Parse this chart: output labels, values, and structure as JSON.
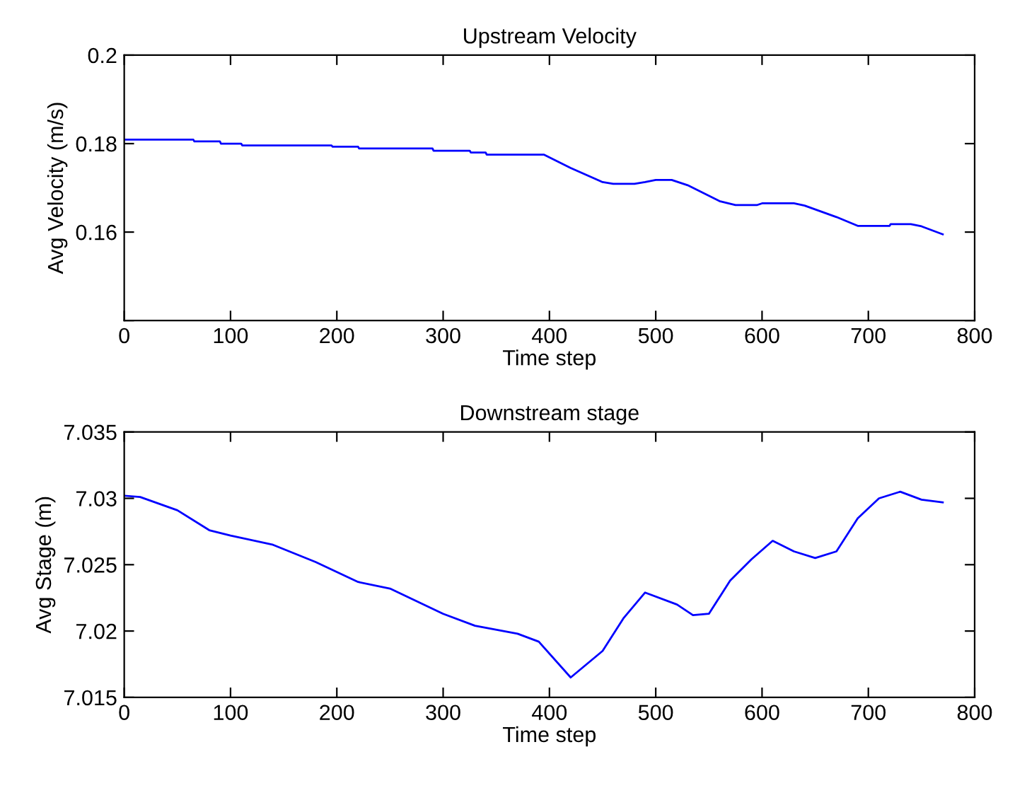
{
  "chart_data": [
    {
      "type": "line",
      "title": "Upstream Velocity",
      "xlabel": "Time step",
      "ylabel": "Avg Velocity (m/s)",
      "xlim": [
        0,
        800
      ],
      "xticks": [
        0,
        100,
        200,
        300,
        400,
        500,
        600,
        700,
        800
      ],
      "ylim": [
        0.14,
        0.2
      ],
      "yticks": [
        {
          "value": 0.14,
          "label": null
        },
        0.16,
        0.18,
        0.2
      ],
      "grid": false,
      "series": [
        {
          "color": "#0000ff",
          "x": [
            0,
            65,
            66,
            90,
            91,
            110,
            111,
            195,
            196,
            220,
            221,
            290,
            291,
            325,
            326,
            340,
            341,
            395,
            420,
            450,
            460,
            480,
            490,
            500,
            515,
            530,
            560,
            575,
            595,
            600,
            630,
            640,
            670,
            690,
            720,
            721,
            740,
            750,
            770
          ],
          "values": [
            0.1809,
            0.1809,
            0.1805,
            0.1805,
            0.18,
            0.18,
            0.1796,
            0.1796,
            0.1793,
            0.1793,
            0.1789,
            0.1789,
            0.1784,
            0.1784,
            0.178,
            0.178,
            0.1775,
            0.1775,
            0.1745,
            0.1713,
            0.1709,
            0.1709,
            0.1713,
            0.1718,
            0.1718,
            0.1706,
            0.167,
            0.1661,
            0.1661,
            0.1665,
            0.1665,
            0.166,
            0.1634,
            0.1614,
            0.1614,
            0.1618,
            0.1618,
            0.1613,
            0.1595
          ]
        }
      ]
    },
    {
      "type": "line",
      "title": "Downstream stage",
      "xlabel": "Time step",
      "ylabel": "Avg Stage (m)",
      "xlim": [
        0,
        800
      ],
      "xticks": [
        0,
        100,
        200,
        300,
        400,
        500,
        600,
        700,
        800
      ],
      "ylim": [
        7.015,
        7.035
      ],
      "yticks": [
        7.015,
        7.02,
        7.025,
        7.03,
        7.035
      ],
      "grid": false,
      "series": [
        {
          "color": "#0000ff",
          "x": [
            0,
            15,
            50,
            80,
            100,
            140,
            180,
            220,
            250,
            300,
            330,
            370,
            390,
            420,
            450,
            470,
            490,
            520,
            535,
            550,
            570,
            590,
            610,
            630,
            650,
            670,
            690,
            710,
            730,
            750,
            770
          ],
          "values": [
            7.0302,
            7.0301,
            7.0291,
            7.0276,
            7.0272,
            7.0265,
            7.0252,
            7.0237,
            7.0232,
            7.0213,
            7.0204,
            7.0198,
            7.0192,
            7.0165,
            7.0185,
            7.021,
            7.0229,
            7.022,
            7.0212,
            7.0213,
            7.0238,
            7.0254,
            7.0268,
            7.026,
            7.0255,
            7.026,
            7.0285,
            7.03,
            7.0305,
            7.0299,
            7.0297
          ]
        }
      ]
    }
  ]
}
